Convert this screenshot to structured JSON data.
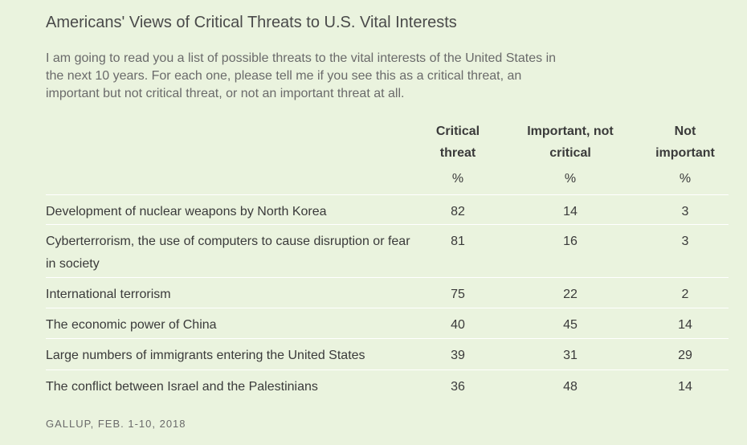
{
  "title": "Americans' Views of Critical Threats to U.S. Vital Interests",
  "subtitle": "I am going to read you a list of possible threats to the vital interests of the United States in the next 10 years. For each one, please tell me if you see this as a critical threat, an important but not critical threat, or not an important threat at all.",
  "source": "GALLUP, FEB. 1-10, 2018",
  "colors": {
    "background": "#eaf3de",
    "row_divider": "#ffffff",
    "text": "#3a3a3a",
    "muted_text": "#6a6a6a"
  },
  "chart_data": {
    "type": "table",
    "columns": [
      {
        "line1": "Critical",
        "line2": "threat",
        "unit": "%"
      },
      {
        "line1": "Important, not",
        "line2": "critical",
        "unit": "%"
      },
      {
        "line1": "Not",
        "line2": "important",
        "unit": "%"
      }
    ],
    "rows": [
      {
        "label": "Development of nuclear weapons by North Korea",
        "values": [
          "82",
          "14",
          "3"
        ]
      },
      {
        "label": "Cyberterrorism, the use of computers to cause disruption or fear in society",
        "values": [
          "81",
          "16",
          "3"
        ]
      },
      {
        "label": "International terrorism",
        "values": [
          "75",
          "22",
          "2"
        ]
      },
      {
        "label": "The economic power of China",
        "values": [
          "40",
          "45",
          "14"
        ]
      },
      {
        "label": "Large numbers of immigrants entering the United States",
        "values": [
          "39",
          "31",
          "29"
        ]
      },
      {
        "label": "The conflict between Israel and the Palestinians",
        "values": [
          "36",
          "48",
          "14"
        ]
      }
    ]
  }
}
